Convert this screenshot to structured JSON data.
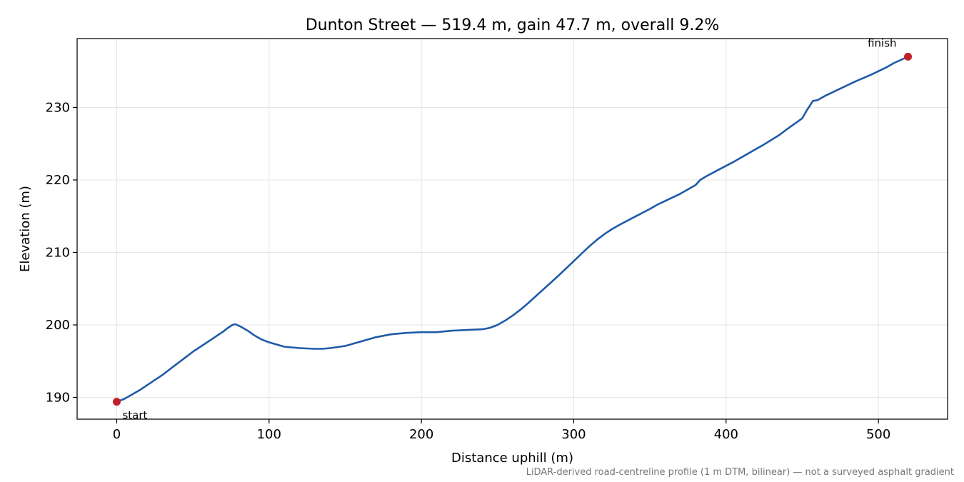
{
  "chart_data": {
    "type": "line",
    "title": "Dunton Street — 519.4 m, gain 47.7 m, overall 9.2%",
    "xlabel": "Distance uphill (m)",
    "ylabel": "Elevation (m)",
    "xlim": [
      -26,
      545.4
    ],
    "ylim": [
      187.0,
      239.5
    ],
    "xticks": [
      0,
      100,
      200,
      300,
      400,
      500
    ],
    "xtick_labels": [
      "0",
      "100",
      "200",
      "300",
      "400",
      "500"
    ],
    "yticks": [
      190,
      200,
      210,
      220,
      230
    ],
    "ytick_labels": [
      "190",
      "200",
      "210",
      "220",
      "230"
    ],
    "grid": true,
    "legend": "none",
    "footnote": "LiDAR-derived road-centreline profile (1 m DTM, bilinear) — not a surveyed asphalt gradient",
    "colors": {
      "line": "#1f5aa8",
      "marker": "#c41e2a",
      "grid": "#e6e6e6",
      "footnote": "#777777"
    },
    "series": [
      {
        "x": [
          0,
          5,
          10,
          15,
          20,
          25,
          30,
          35,
          40,
          45,
          50,
          55,
          60,
          65,
          70,
          73,
          76,
          78,
          82,
          86,
          90,
          95,
          100,
          110,
          120,
          130,
          135,
          140,
          150,
          160,
          170,
          180,
          190,
          200,
          210,
          220,
          230,
          240,
          245,
          250,
          255,
          260,
          265,
          270,
          280,
          290,
          300,
          305,
          310,
          315,
          320,
          325,
          330,
          340,
          350,
          355,
          360,
          370,
          380,
          383,
          387,
          395,
          405,
          415,
          425,
          435,
          440,
          450,
          453,
          457,
          460,
          465,
          475,
          485,
          495,
          505,
          510,
          519.4
        ],
        "y": [
          189.4,
          189.8,
          190.4,
          191.0,
          191.7,
          192.4,
          193.1,
          193.9,
          194.7,
          195.5,
          196.3,
          197.0,
          197.7,
          198.4,
          199.1,
          199.6,
          200.0,
          200.1,
          199.7,
          199.2,
          198.6,
          198.0,
          197.6,
          197.0,
          196.8,
          196.7,
          196.7,
          196.8,
          197.1,
          197.7,
          198.3,
          198.7,
          198.9,
          199.0,
          199.0,
          199.2,
          199.3,
          199.4,
          199.6,
          200.0,
          200.6,
          201.3,
          202.1,
          203.0,
          204.9,
          206.8,
          208.8,
          209.8,
          210.8,
          211.7,
          212.5,
          213.2,
          213.8,
          214.9,
          216.0,
          216.6,
          217.1,
          218.1,
          219.3,
          220.0,
          220.5,
          221.4,
          222.5,
          223.7,
          224.9,
          226.2,
          227.0,
          228.5,
          229.6,
          230.9,
          231.0,
          231.6,
          232.6,
          233.6,
          234.5,
          235.5,
          236.1,
          237.0
        ]
      }
    ],
    "annotations": [
      {
        "label": "start",
        "x": 0,
        "y": 189.4
      },
      {
        "label": "finish",
        "x": 519.4,
        "y": 237.0
      }
    ]
  }
}
